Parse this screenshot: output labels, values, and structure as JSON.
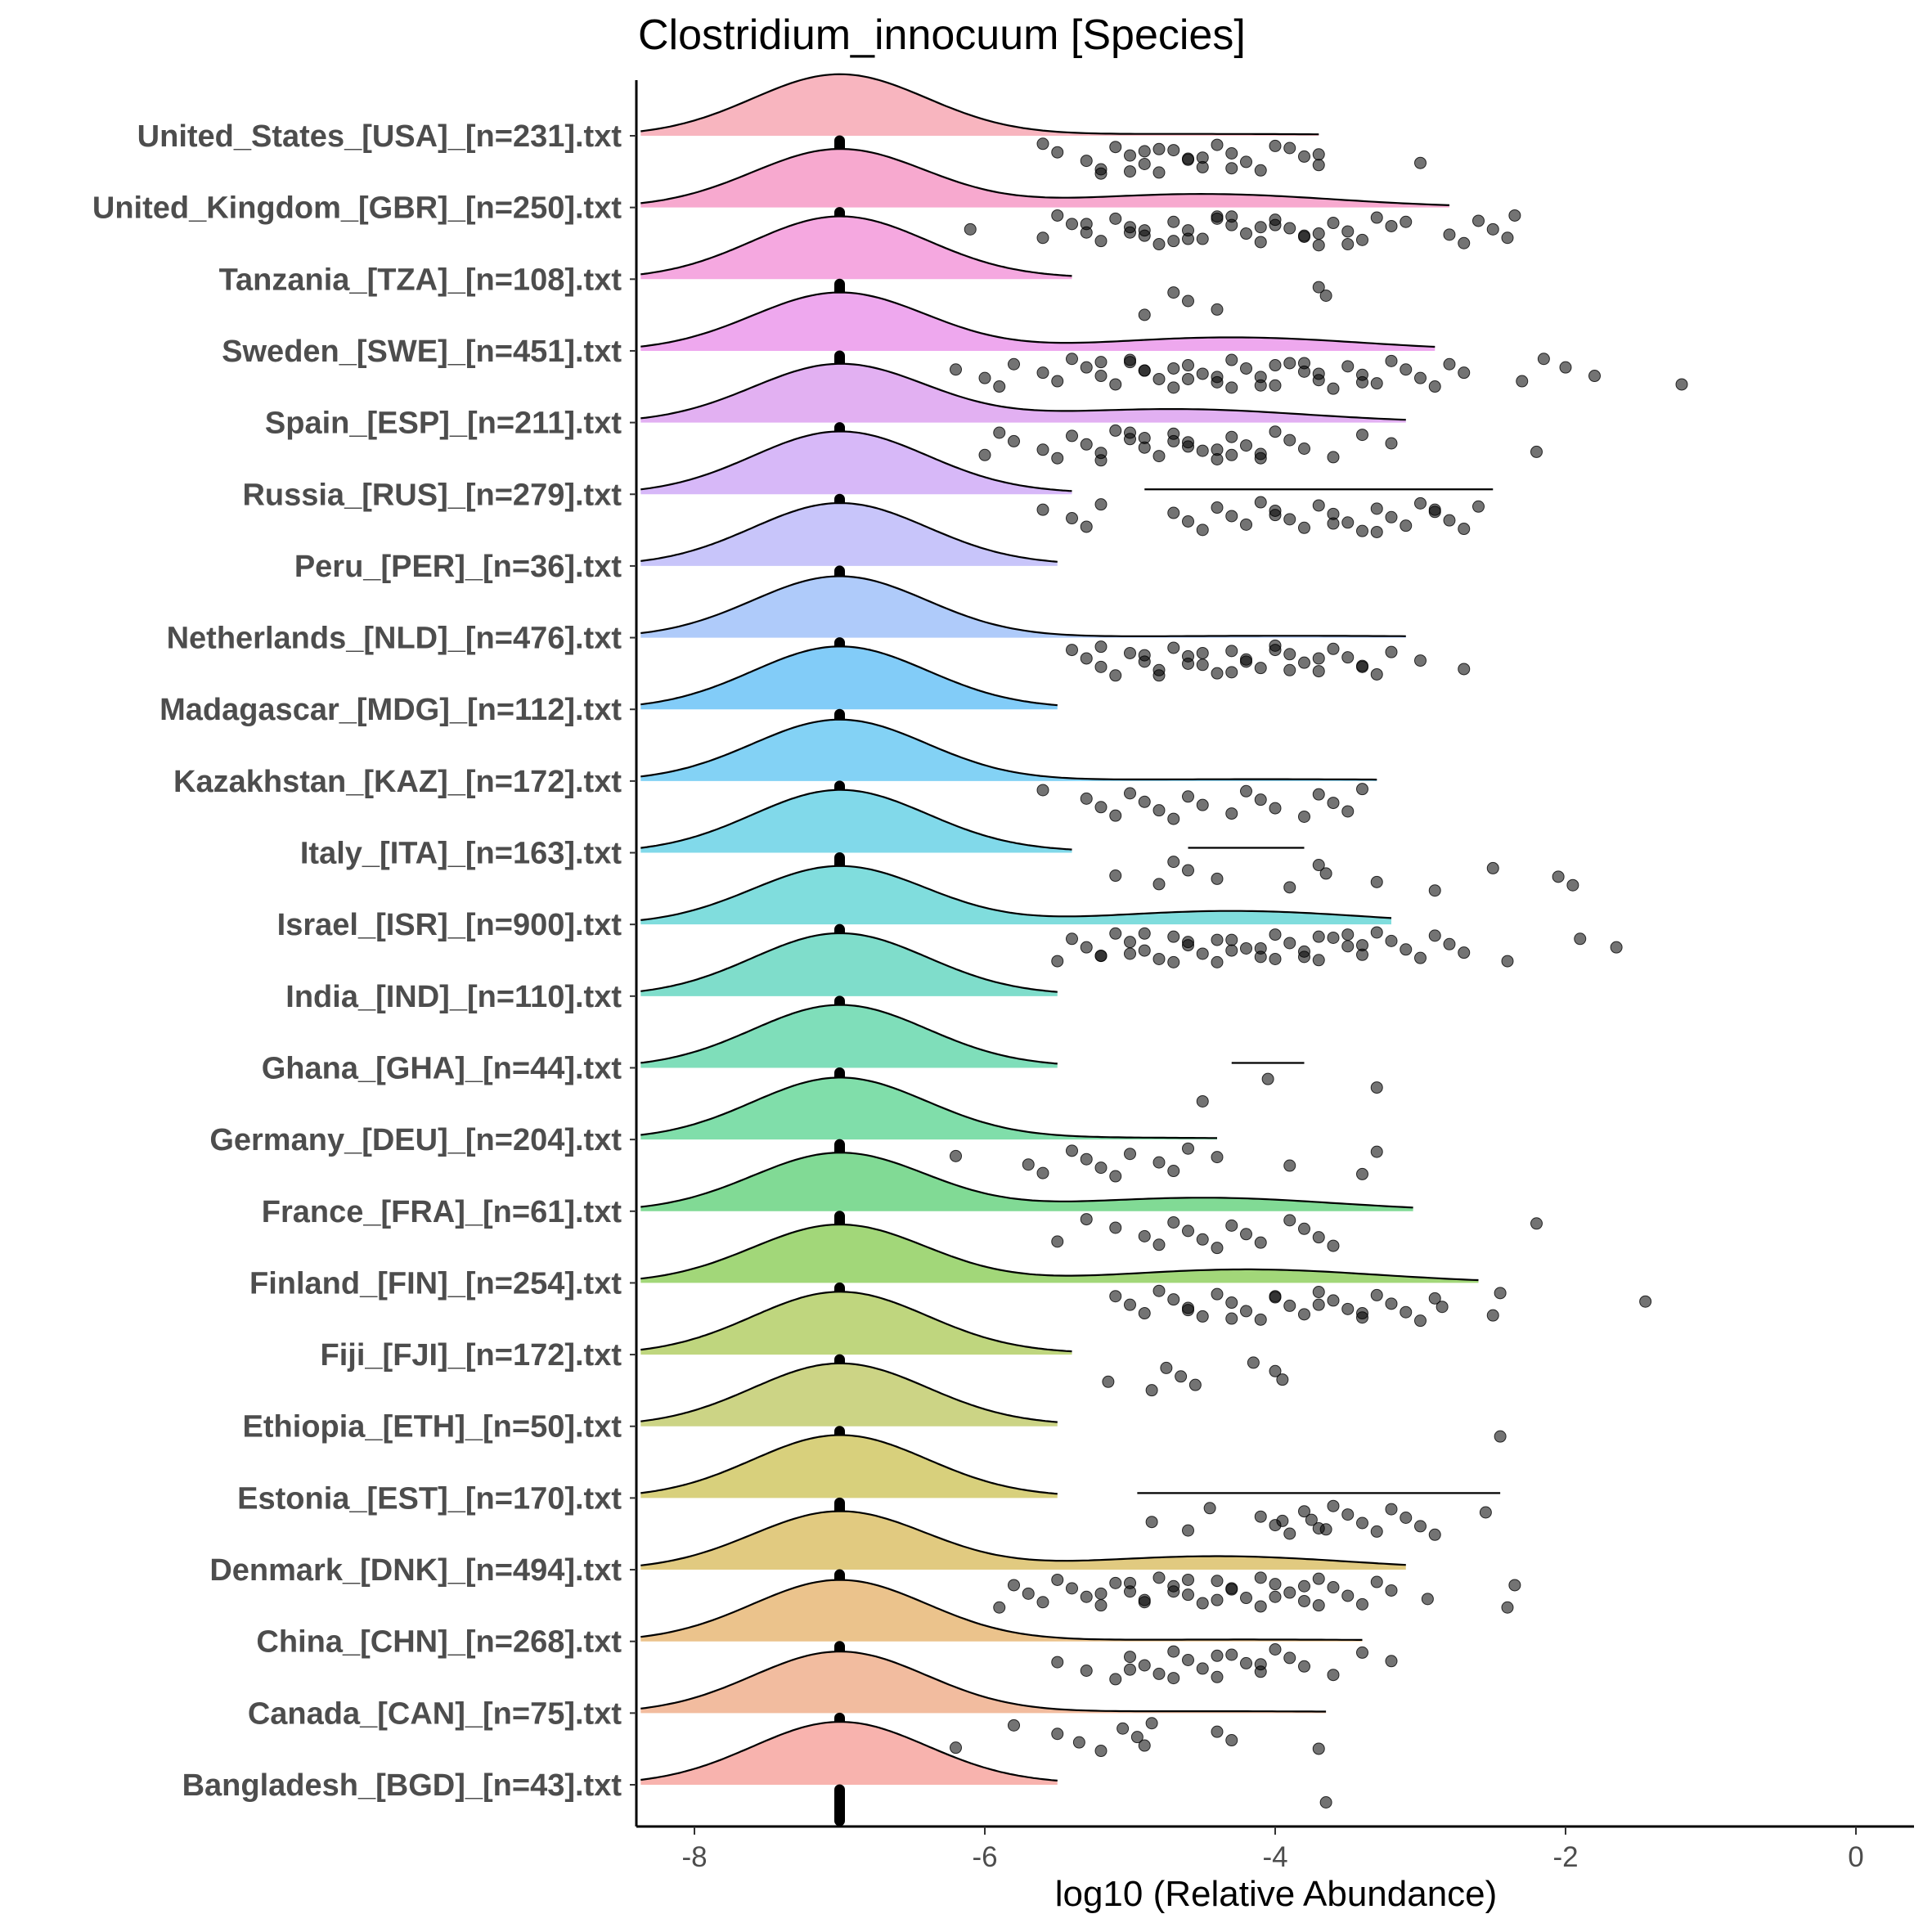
{
  "chart_data": {
    "type": "ridgeline",
    "title": "Clostridium_innocuum [Species]",
    "xlabel": "log10 (Relative Abundance)",
    "ylabel": "",
    "xlim": [
      -8.4,
      0.4
    ],
    "xticks": [
      -8,
      -6,
      -4,
      -2,
      0
    ],
    "xtick_labels": [
      "-8",
      "-6",
      "-4",
      "-2",
      "0"
    ],
    "median_marker": -7.0,
    "series": [
      {
        "name": "United_States_[USA]_[n=231].txt",
        "color": "#F8B5BF",
        "density_peak": -7.0,
        "density_end": -3.7,
        "second_mode": null,
        "segment": null,
        "points": [
          -5.6,
          -5.5,
          -5.3,
          -5.2,
          -5.1,
          -5.0,
          -4.9,
          -4.8,
          -4.7,
          -4.6,
          -4.5,
          -4.4,
          -4.3,
          -4.2,
          -4.1,
          -3.9,
          -3.8,
          -3.7,
          -5.2,
          -4.9,
          -4.6,
          -4.3,
          -4.0,
          -3.7,
          -3.0,
          -5.0,
          -4.8,
          -4.5
        ]
      },
      {
        "name": "United_Kingdom_[GBR]_[n=250].txt",
        "color": "#F7A9CF",
        "density_peak": -7.0,
        "density_end": -2.8,
        "second_mode": -4.5,
        "segment": null,
        "points": [
          -6.1,
          -5.6,
          -5.5,
          -5.4,
          -5.3,
          -5.2,
          -5.1,
          -5.0,
          -4.9,
          -4.8,
          -4.7,
          -4.6,
          -4.5,
          -4.4,
          -4.3,
          -4.2,
          -4.1,
          -4.0,
          -3.9,
          -3.8,
          -3.7,
          -3.6,
          -3.5,
          -3.4,
          -3.3,
          -3.2,
          -2.8,
          -2.7,
          -2.6,
          -2.5,
          -2.4,
          -2.35,
          -5.3,
          -5.0,
          -4.7,
          -4.4,
          -4.1,
          -3.8,
          -3.5,
          -3.1,
          -4.9,
          -4.6,
          -4.3,
          -4.0,
          -3.7
        ]
      },
      {
        "name": "Tanzania_[TZA]_[n=108].txt",
        "color": "#F5A8E0",
        "density_peak": -7.0,
        "density_end": -5.4,
        "second_mode": null,
        "segment": null,
        "points": [
          -4.9,
          -4.7,
          -4.6,
          -4.4,
          -3.7,
          -3.65
        ]
      },
      {
        "name": "Sweden_[SWE]_[n=451].txt",
        "color": "#EEA8EE",
        "density_peak": -7.0,
        "density_end": -2.9,
        "second_mode": -4.3,
        "segment": null,
        "points": [
          -6.2,
          -6.0,
          -5.9,
          -5.8,
          -5.6,
          -5.5,
          -5.4,
          -5.3,
          -5.2,
          -5.1,
          -5.0,
          -4.9,
          -4.8,
          -4.7,
          -4.6,
          -4.5,
          -4.4,
          -4.3,
          -4.2,
          -4.1,
          -4.0,
          -3.9,
          -3.8,
          -3.7,
          -3.6,
          -3.5,
          -3.4,
          -3.3,
          -3.2,
          -3.1,
          -3.0,
          -2.9,
          -2.8,
          -2.7,
          -2.3,
          -2.15,
          -2.0,
          -1.8,
          -1.2,
          -5.2,
          -4.9,
          -4.6,
          -4.3,
          -4.0,
          -3.7,
          -3.4,
          -5.0,
          -4.7,
          -4.4,
          -4.1,
          -3.8
        ]
      },
      {
        "name": "Spain_[ESP]_[n=211].txt",
        "color": "#E2B0F2",
        "density_peak": -7.0,
        "density_end": -3.1,
        "second_mode": -4.7,
        "segment": null,
        "points": [
          -6.0,
          -5.9,
          -5.8,
          -5.6,
          -5.5,
          -5.4,
          -5.3,
          -5.2,
          -5.1,
          -5.0,
          -4.9,
          -4.8,
          -4.7,
          -4.6,
          -4.5,
          -4.4,
          -4.3,
          -4.2,
          -4.1,
          -4.0,
          -3.9,
          -3.8,
          -3.6,
          -3.4,
          -3.2,
          -2.2,
          -5.2,
          -4.9,
          -4.6,
          -4.3,
          -5.0,
          -4.7,
          -4.4,
          -4.1
        ]
      },
      {
        "name": "Russia_[RUS]_[n=279].txt",
        "color": "#D7B8F8",
        "density_peak": -7.0,
        "density_end": -5.4,
        "second_mode": null,
        "segment": [
          -4.9,
          -2.5
        ],
        "points": [
          -5.6,
          -5.4,
          -5.3,
          -5.2,
          -4.7,
          -4.6,
          -4.5,
          -4.4,
          -4.3,
          -4.2,
          -4.1,
          -4.0,
          -3.9,
          -3.8,
          -3.7,
          -3.6,
          -3.5,
          -3.4,
          -3.3,
          -3.2,
          -3.1,
          -3.0,
          -2.9,
          -2.8,
          -2.7,
          -2.6,
          -4.0,
          -3.6,
          -3.3,
          -2.9
        ]
      },
      {
        "name": "Peru_[PER]_[n=36].txt",
        "color": "#C8C5FA",
        "density_peak": -7.0,
        "density_end": -5.5,
        "second_mode": null,
        "segment": null,
        "points": []
      },
      {
        "name": "Netherlands_[NLD]_[n=476].txt",
        "color": "#AFCBFA",
        "density_peak": -7.0,
        "density_end": -3.1,
        "second_mode": null,
        "segment": null,
        "points": [
          -5.4,
          -5.3,
          -5.2,
          -5.1,
          -5.0,
          -4.9,
          -4.8,
          -4.7,
          -4.6,
          -4.5,
          -4.4,
          -4.3,
          -4.2,
          -4.1,
          -4.0,
          -3.9,
          -3.8,
          -3.7,
          -3.6,
          -3.5,
          -3.4,
          -3.3,
          -3.2,
          -3.0,
          -2.7,
          -5.2,
          -4.9,
          -4.6,
          -4.3,
          -4.0,
          -3.7,
          -3.4,
          -4.8,
          -4.5,
          -4.2,
          -3.9
        ]
      },
      {
        "name": "Madagascar_[MDG]_[n=112].txt",
        "color": "#82CCF8",
        "density_peak": -7.0,
        "density_end": -5.5,
        "second_mode": null,
        "segment": null,
        "points": []
      },
      {
        "name": "Kazakhstan_[KAZ]_[n=172].txt",
        "color": "#83D2F5",
        "density_peak": -7.0,
        "density_end": -3.3,
        "second_mode": null,
        "segment": null,
        "points": [
          -5.6,
          -5.3,
          -5.2,
          -5.1,
          -5.0,
          -4.9,
          -4.8,
          -4.7,
          -4.6,
          -4.5,
          -4.3,
          -4.2,
          -4.1,
          -4.0,
          -3.8,
          -3.7,
          -3.6,
          -3.5,
          -3.4
        ]
      },
      {
        "name": "Italy_[ITA]_[n=163].txt",
        "color": "#81D9EA",
        "density_peak": -7.0,
        "density_end": -5.4,
        "second_mode": null,
        "segment": [
          -4.6,
          -3.8
        ],
        "points": [
          -5.1,
          -4.8,
          -4.7,
          -4.6,
          -4.4,
          -3.9,
          -3.7,
          -3.65,
          -3.3,
          -2.9,
          -2.5,
          -2.05,
          -1.95
        ]
      },
      {
        "name": "Israel_[ISR]_[n=900].txt",
        "color": "#80DDDD",
        "density_peak": -7.0,
        "density_end": -3.2,
        "second_mode": -4.3,
        "segment": null,
        "points": [
          -5.5,
          -5.4,
          -5.3,
          -5.2,
          -5.1,
          -5.0,
          -4.9,
          -4.8,
          -4.7,
          -4.6,
          -4.5,
          -4.4,
          -4.3,
          -4.2,
          -4.1,
          -4.0,
          -3.9,
          -3.8,
          -3.7,
          -3.6,
          -3.5,
          -3.4,
          -3.3,
          -3.2,
          -3.1,
          -3.0,
          -2.9,
          -2.8,
          -2.7,
          -2.4,
          -1.9,
          -1.65,
          -5.2,
          -4.9,
          -4.6,
          -4.3,
          -4.0,
          -3.7,
          -3.4,
          -5.0,
          -4.7,
          -4.4,
          -4.1,
          -3.8,
          -3.5
        ]
      },
      {
        "name": "India_[IND]_[n=110].txt",
        "color": "#7FDDCB",
        "density_peak": -7.0,
        "density_end": -5.5,
        "second_mode": null,
        "segment": null,
        "points": []
      },
      {
        "name": "Ghana_[GHA]_[n=44].txt",
        "color": "#7FDEBA",
        "density_peak": -7.0,
        "density_end": -5.5,
        "second_mode": null,
        "segment": [
          -4.3,
          -3.8
        ],
        "points": [
          -4.5,
          -4.05,
          -3.3
        ]
      },
      {
        "name": "Germany_[DEU]_[n=204].txt",
        "color": "#80DEAA",
        "density_peak": -7.0,
        "density_end": -4.4,
        "second_mode": null,
        "segment": null,
        "points": [
          -6.2,
          -5.7,
          -5.6,
          -5.4,
          -5.3,
          -5.2,
          -5.1,
          -5.0,
          -4.8,
          -4.7,
          -4.6,
          -4.4,
          -3.9,
          -3.4,
          -3.3
        ]
      },
      {
        "name": "France_[FRA]_[n=61].txt",
        "color": "#81DA95",
        "density_peak": -7.0,
        "density_end": -3.05,
        "second_mode": -4.5,
        "segment": null,
        "points": [
          -5.5,
          -5.3,
          -5.1,
          -4.9,
          -4.8,
          -4.7,
          -4.6,
          -4.5,
          -4.4,
          -4.3,
          -4.2,
          -4.1,
          -3.9,
          -3.8,
          -3.7,
          -3.6,
          -2.2
        ]
      },
      {
        "name": "Finland_[FIN]_[n=254].txt",
        "color": "#A2D779",
        "density_peak": -7.0,
        "density_end": -2.6,
        "second_mode": -4.2,
        "segment": null,
        "points": [
          -5.1,
          -5.0,
          -4.9,
          -4.8,
          -4.7,
          -4.6,
          -4.5,
          -4.4,
          -4.3,
          -4.2,
          -4.1,
          -4.0,
          -3.9,
          -3.8,
          -3.7,
          -3.6,
          -3.5,
          -3.4,
          -3.3,
          -3.2,
          -3.1,
          -3.0,
          -2.9,
          -2.85,
          -2.5,
          -2.45,
          -1.45,
          -4.6,
          -4.3,
          -4.0,
          -3.7,
          -3.4
        ]
      },
      {
        "name": "Fiji_[FJI]_[n=172].txt",
        "color": "#BFD67E",
        "density_peak": -7.0,
        "density_end": -5.4,
        "second_mode": null,
        "segment": null,
        "points": [
          -5.15,
          -4.85,
          -4.75,
          -4.65,
          -4.55,
          -4.15,
          -4.0,
          -3.95
        ]
      },
      {
        "name": "Ethiopia_[ETH]_[n=50].txt",
        "color": "#CCD485",
        "density_peak": -7.0,
        "density_end": -5.5,
        "second_mode": null,
        "segment": null,
        "points": [
          -2.45
        ]
      },
      {
        "name": "Estonia_[EST]_[n=170].txt",
        "color": "#D8D07C",
        "density_peak": -7.0,
        "density_end": -5.5,
        "second_mode": null,
        "segment": [
          -4.95,
          -2.45
        ],
        "points": [
          -4.85,
          -4.6,
          -4.45,
          -4.1,
          -4.0,
          -3.9,
          -3.8,
          -3.75,
          -3.7,
          -3.6,
          -3.5,
          -3.4,
          -3.3,
          -3.2,
          -3.1,
          -3.0,
          -2.9,
          -2.55,
          -3.95,
          -3.65
        ]
      },
      {
        "name": "Denmark_[DNK]_[n=494].txt",
        "color": "#E1CA80",
        "density_peak": -7.0,
        "density_end": -3.1,
        "second_mode": -4.4,
        "segment": null,
        "points": [
          -5.9,
          -5.8,
          -5.7,
          -5.6,
          -5.5,
          -5.4,
          -5.3,
          -5.2,
          -5.1,
          -5.0,
          -4.9,
          -4.8,
          -4.7,
          -4.6,
          -4.5,
          -4.4,
          -4.3,
          -4.2,
          -4.1,
          -4.0,
          -3.9,
          -3.8,
          -3.7,
          -3.6,
          -3.5,
          -3.4,
          -3.3,
          -3.2,
          -2.95,
          -2.4,
          -2.35,
          -5.2,
          -4.9,
          -4.6,
          -4.3,
          -4.0,
          -3.7,
          -5.0,
          -4.7,
          -4.4,
          -4.1,
          -3.8
        ]
      },
      {
        "name": "China_[CHN]_[n=268].txt",
        "color": "#EBC38C",
        "density_peak": -7.0,
        "density_end": -3.4,
        "second_mode": null,
        "segment": null,
        "points": [
          -5.5,
          -5.3,
          -5.1,
          -5.0,
          -4.9,
          -4.8,
          -4.7,
          -4.6,
          -4.5,
          -4.4,
          -4.3,
          -4.2,
          -4.1,
          -4.0,
          -3.9,
          -3.8,
          -3.6,
          -3.4,
          -3.2,
          -5.0,
          -4.7,
          -4.4,
          -4.1
        ]
      },
      {
        "name": "Canada_[CAN]_[n=75].txt",
        "color": "#F2BC9F",
        "density_peak": -7.0,
        "density_end": -3.65,
        "second_mode": null,
        "segment": null,
        "points": [
          -6.2,
          -5.8,
          -5.5,
          -5.35,
          -5.2,
          -5.05,
          -4.95,
          -4.9,
          -4.85,
          -4.4,
          -4.3,
          -3.7
        ]
      },
      {
        "name": "Bangladesh_[BGD]_[n=43].txt",
        "color": "#F8B3AE",
        "density_peak": -7.0,
        "density_end": -5.5,
        "second_mode": null,
        "segment": null,
        "points": [
          -3.65
        ]
      }
    ]
  }
}
